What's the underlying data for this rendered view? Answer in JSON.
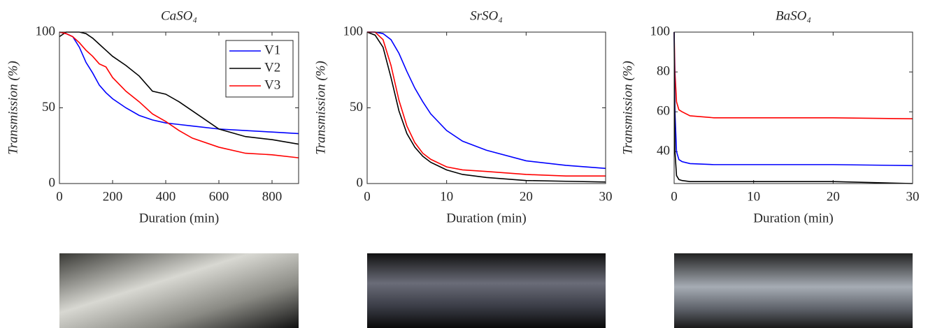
{
  "chart_data": [
    {
      "type": "line",
      "title": "CaSO₄",
      "xlabel": "Duration (min)",
      "ylabel": "Transmission (%)",
      "x": [
        0,
        25,
        50,
        75,
        100,
        125,
        150,
        175,
        200,
        250,
        300,
        350,
        400,
        450,
        500,
        600,
        700,
        800,
        900
      ],
      "xlim": [
        0,
        900
      ],
      "xticks": [
        0,
        200,
        400,
        600,
        800
      ],
      "ylim": [
        0,
        100
      ],
      "yticks": [
        0,
        50,
        100
      ],
      "legend": "upper right",
      "series": [
        {
          "name": "V1",
          "color": "#0000ff",
          "values": [
            100,
            99,
            97,
            90,
            80,
            73,
            65,
            60,
            56,
            50,
            45,
            42,
            40,
            39,
            38,
            36,
            35,
            34,
            33
          ]
        },
        {
          "name": "V2",
          "color": "#000000",
          "values": [
            97,
            100,
            100,
            100,
            99,
            96,
            92,
            88,
            84,
            78,
            71,
            61,
            59,
            54,
            48,
            36,
            31,
            29,
            26
          ]
        },
        {
          "name": "V3",
          "color": "#ff0000",
          "values": [
            100,
            99,
            97,
            93,
            88,
            84,
            79,
            77,
            70,
            61,
            54,
            46,
            41,
            35,
            30,
            24,
            20,
            19,
            17
          ]
        }
      ]
    },
    {
      "type": "line",
      "title": "SrSO₄",
      "xlabel": "Duration (min)",
      "ylabel": "Transmission (%)",
      "x": [
        0,
        1,
        2,
        3,
        4,
        5,
        6,
        7,
        8,
        10,
        12,
        15,
        20,
        25,
        30
      ],
      "xlim": [
        0,
        30
      ],
      "xticks": [
        0,
        10,
        20,
        30
      ],
      "ylim": [
        0,
        100
      ],
      "yticks": [
        0,
        50,
        100
      ],
      "series": [
        {
          "color": "#0000ff",
          "values": [
            100,
            100,
            99,
            95,
            86,
            74,
            63,
            54,
            46,
            35,
            28,
            22,
            15,
            12,
            10
          ]
        },
        {
          "color": "#000000",
          "values": [
            100,
            98,
            90,
            70,
            48,
            33,
            24,
            18,
            14,
            9,
            6,
            4,
            2,
            1.5,
            1
          ]
        },
        {
          "color": "#ff0000",
          "values": [
            100,
            100,
            95,
            78,
            55,
            38,
            27,
            20,
            16,
            11,
            9,
            8,
            6,
            5,
            5
          ]
        }
      ]
    },
    {
      "type": "line",
      "title": "BaSO₄",
      "xlabel": "Duration (min)",
      "ylabel": "Transmission (%)",
      "x": [
        0,
        0.1,
        0.3,
        0.6,
        1,
        2,
        5,
        10,
        20,
        30
      ],
      "xlim": [
        0,
        30
      ],
      "xticks": [
        0,
        10,
        20,
        30
      ],
      "ylim": [
        24,
        100
      ],
      "yticks": [
        40,
        60,
        80,
        100
      ],
      "series": [
        {
          "color": "#ff0000",
          "values": [
            100,
            80,
            65,
            61,
            60,
            58,
            57,
            57,
            57,
            56.5
          ]
        },
        {
          "color": "#0000ff",
          "values": [
            100,
            60,
            40,
            36,
            35,
            34,
            33.5,
            33.5,
            33.5,
            33
          ]
        },
        {
          "color": "#000000",
          "values": [
            100,
            40,
            28,
            26,
            25.5,
            25,
            25,
            25,
            25,
            24
          ]
        }
      ]
    }
  ]
}
